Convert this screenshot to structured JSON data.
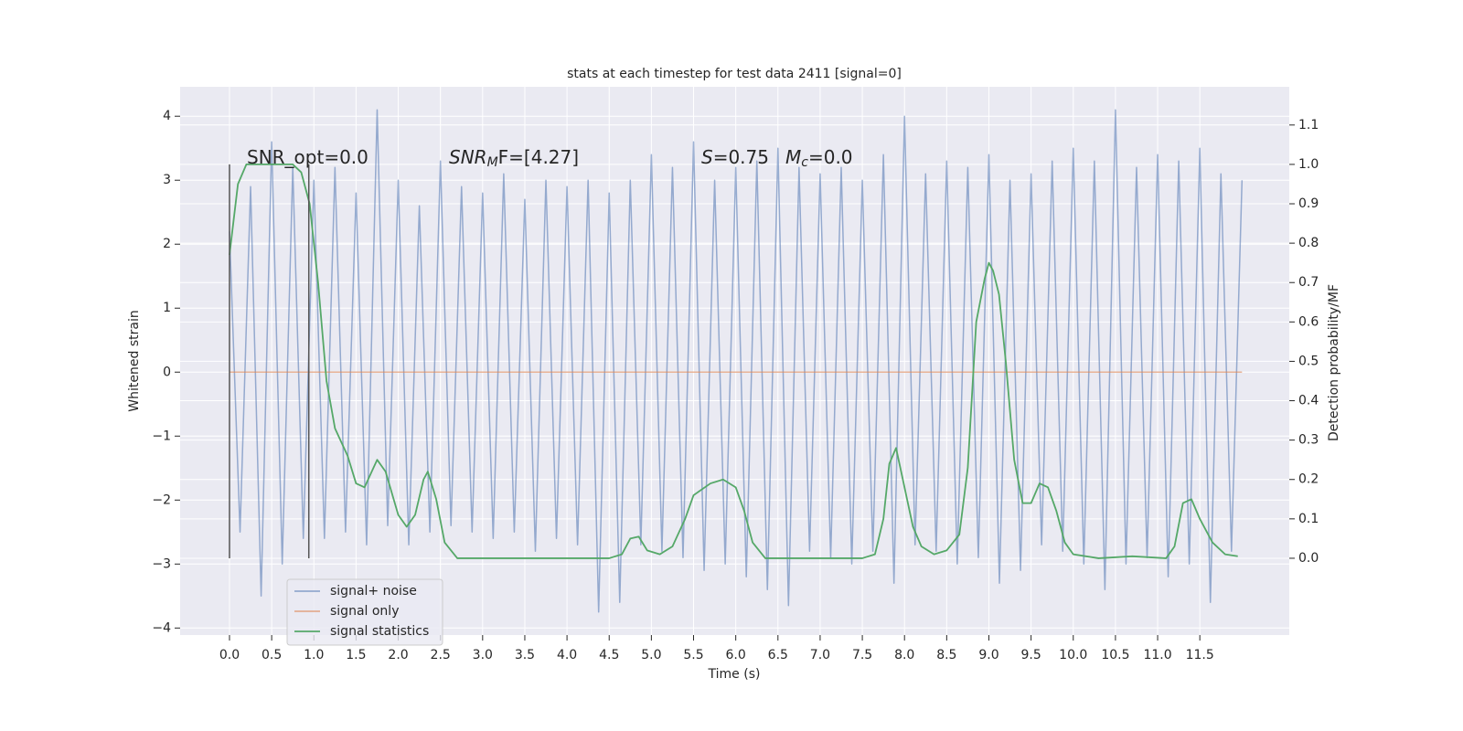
{
  "chart_data": {
    "type": "line",
    "title": "stats at each timestep for test data 2411 [signal=0]",
    "xlabel": "Time (s)",
    "ylabel": "Whitened strain",
    "y2label": "Detection probability/MF",
    "xlim": [
      -0.585,
      12.56
    ],
    "ylim": [
      -4.11,
      4.46
    ],
    "y2lim": [
      -0.195,
      1.197
    ],
    "xticks": [
      {
        "value": 0,
        "label": "0.0"
      },
      {
        "value": 0.5,
        "label": "0.5"
      },
      {
        "value": 1,
        "label": "1.0"
      },
      {
        "value": 1.5,
        "label": "1.5"
      },
      {
        "value": 2,
        "label": "2.0"
      },
      {
        "value": 2.5,
        "label": "2.5"
      },
      {
        "value": 3,
        "label": "3.0"
      },
      {
        "value": 3.5,
        "label": "3.5"
      },
      {
        "value": 4,
        "label": "4.0"
      },
      {
        "value": 4.5,
        "label": "4.5"
      },
      {
        "value": 5,
        "label": "5.0"
      },
      {
        "value": 5.5,
        "label": "5.5"
      },
      {
        "value": 6,
        "label": "6.0"
      },
      {
        "value": 6.5,
        "label": "6.5"
      },
      {
        "value": 7,
        "label": "7.0"
      },
      {
        "value": 7.5,
        "label": "7.5"
      },
      {
        "value": 8,
        "label": "8.0"
      },
      {
        "value": 8.5,
        "label": "8.5"
      },
      {
        "value": 9,
        "label": "9.0"
      },
      {
        "value": 9.5,
        "label": "9.5"
      },
      {
        "value": 10,
        "label": "10.0"
      },
      {
        "value": 10.5,
        "label": "10.5"
      },
      {
        "value": 11,
        "label": "11.0"
      },
      {
        "value": 11.5,
        "label": "11.5"
      }
    ],
    "yticks": [
      {
        "value": -4,
        "label": "−4"
      },
      {
        "value": -3,
        "label": "−3"
      },
      {
        "value": -2,
        "label": "−2"
      },
      {
        "value": -1,
        "label": "−1"
      },
      0,
      1,
      2,
      3,
      4
    ],
    "y2ticks": [
      {
        "value": 0,
        "label": "0.0"
      },
      {
        "value": 0.1,
        "label": "0.1"
      },
      {
        "value": 0.2,
        "label": "0.2"
      },
      {
        "value": 0.3,
        "label": "0.3"
      },
      {
        "value": 0.4,
        "label": "0.4"
      },
      {
        "value": 0.5,
        "label": "0.5"
      },
      {
        "value": 0.6,
        "label": "0.6"
      },
      {
        "value": 0.7,
        "label": "0.7"
      },
      {
        "value": 0.8,
        "label": "0.8"
      },
      {
        "value": 0.9,
        "label": "0.9"
      },
      {
        "value": 1,
        "label": "1.0"
      },
      {
        "value": 1.1,
        "label": "1.1"
      }
    ],
    "grid": true,
    "legend": "lower left",
    "vlines": {
      "x": [
        0,
        0.94
      ],
      "ymin": 0,
      "ymax": 1,
      "axis": "y2",
      "color": "#555555"
    },
    "annotations": [
      {
        "parts": [
          "SNR_opt=0.0"
        ]
      },
      {
        "parts": [
          "SNR",
          "M",
          "F=[4.27]"
        ]
      },
      {
        "parts": [
          "S",
          "=0.75"
        ]
      },
      {
        "parts": [
          "M",
          "c",
          "=0.0"
        ]
      }
    ],
    "series": [
      {
        "name": "signal+ noise",
        "color": "#4c72b0",
        "x": [
          0,
          0.125,
          0.25,
          0.375,
          0.5,
          0.625,
          0.75,
          0.875,
          1,
          1.125,
          1.25,
          1.375,
          1.5,
          1.625,
          1.75,
          1.875,
          2,
          2.125,
          2.25,
          2.375,
          2.5,
          2.625,
          2.75,
          2.875,
          3,
          3.125,
          3.25,
          3.375,
          3.5,
          3.625,
          3.75,
          3.875,
          4,
          4.125,
          4.25,
          4.375,
          4.5,
          4.625,
          4.75,
          4.875,
          5,
          5.125,
          5.25,
          5.375,
          5.5,
          5.625,
          5.75,
          5.875,
          6,
          6.125,
          6.25,
          6.375,
          6.5,
          6.625,
          6.75,
          6.875,
          7,
          7.125,
          7.25,
          7.375,
          7.5,
          7.625,
          7.75,
          7.875,
          8,
          8.125,
          8.25,
          8.375,
          8.5,
          8.625,
          8.75,
          8.875,
          9,
          9.125,
          9.25,
          9.375,
          9.5,
          9.625,
          9.75,
          9.875,
          10,
          10.125,
          10.25,
          10.375,
          10.5,
          10.625,
          10.75,
          10.875,
          11,
          11.125,
          11.25,
          11.375,
          11.5,
          11.625,
          11.75,
          11.875,
          12
        ],
        "values": [
          2.2,
          -2.5,
          2.9,
          -3.5,
          3.6,
          -3.0,
          3.2,
          -2.6,
          3.0,
          -2.6,
          3.2,
          -2.5,
          2.8,
          -2.7,
          4.1,
          -2.4,
          3.0,
          -2.7,
          2.6,
          -2.5,
          3.3,
          -2.4,
          2.9,
          -2.5,
          2.8,
          -2.6,
          3.1,
          -2.5,
          2.7,
          -2.8,
          3.0,
          -2.6,
          2.9,
          -2.7,
          3.0,
          -3.75,
          2.8,
          -3.6,
          3.0,
          -2.7,
          3.4,
          -2.8,
          3.2,
          -2.9,
          3.6,
          -3.1,
          3.0,
          -3.0,
          3.2,
          -3.2,
          3.3,
          -3.4,
          3.5,
          -3.65,
          3.2,
          -2.8,
          3.1,
          -2.9,
          3.2,
          -3.0,
          3.0,
          -2.8,
          3.4,
          -3.3,
          4.0,
          -2.7,
          3.1,
          -2.8,
          3.3,
          -3.0,
          3.2,
          -2.9,
          3.4,
          -3.3,
          3.0,
          -3.1,
          3.1,
          -2.7,
          3.3,
          -2.8,
          3.5,
          -3.0,
          3.3,
          -3.4,
          4.1,
          -3.0,
          3.2,
          -2.9,
          3.4,
          -3.2,
          3.3,
          -3.0,
          3.5,
          -3.6,
          3.1,
          -2.8,
          3.0
        ]
      },
      {
        "name": "signal only",
        "color": "#dd8452",
        "x": [
          0,
          12
        ],
        "values": [
          0,
          0
        ]
      },
      {
        "name": "signal statistics",
        "color": "#55a868",
        "axis": "y2",
        "x": [
          0,
          0.1,
          0.2,
          0.5,
          0.75,
          0.85,
          0.95,
          1.05,
          1.15,
          1.25,
          1.4,
          1.5,
          1.6,
          1.75,
          1.85,
          2.0,
          2.1,
          2.2,
          2.3,
          2.35,
          2.45,
          2.55,
          2.7,
          3.0,
          4.0,
          4.5,
          4.65,
          4.75,
          4.85,
          4.95,
          5.1,
          5.25,
          5.4,
          5.5,
          5.7,
          5.85,
          6.0,
          6.1,
          6.2,
          6.35,
          7.0,
          7.5,
          7.65,
          7.75,
          7.82,
          7.9,
          8.0,
          8.1,
          8.2,
          8.35,
          8.5,
          8.65,
          8.75,
          8.85,
          8.95,
          9.0,
          9.05,
          9.12,
          9.2,
          9.3,
          9.4,
          9.5,
          9.6,
          9.7,
          9.8,
          9.9,
          10.0,
          10.3,
          10.7,
          11.1,
          11.2,
          11.3,
          11.4,
          11.5,
          11.65,
          11.8,
          11.95
        ],
        "values": [
          0.77,
          0.95,
          1.0,
          1.0,
          1.0,
          0.98,
          0.9,
          0.7,
          0.45,
          0.33,
          0.26,
          0.19,
          0.18,
          0.25,
          0.22,
          0.11,
          0.08,
          0.11,
          0.2,
          0.22,
          0.15,
          0.04,
          0.0,
          0.0,
          0.0,
          0.0,
          0.01,
          0.05,
          0.055,
          0.02,
          0.01,
          0.03,
          0.1,
          0.16,
          0.19,
          0.2,
          0.18,
          0.12,
          0.04,
          0.0,
          0.0,
          0.0,
          0.01,
          0.1,
          0.24,
          0.28,
          0.18,
          0.08,
          0.03,
          0.01,
          0.02,
          0.06,
          0.23,
          0.6,
          0.71,
          0.75,
          0.73,
          0.67,
          0.5,
          0.25,
          0.14,
          0.14,
          0.19,
          0.18,
          0.12,
          0.04,
          0.01,
          0.0,
          0.005,
          0.0,
          0.03,
          0.14,
          0.15,
          0.1,
          0.04,
          0.01,
          0.005
        ]
      }
    ]
  }
}
